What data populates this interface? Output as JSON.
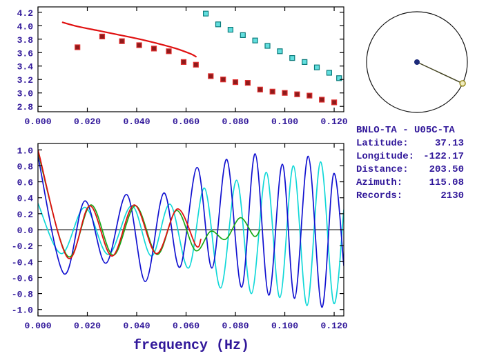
{
  "info_panel": {
    "title": "BNLO-TA - U05C-TA",
    "lines": [
      {
        "label": "Latitude:",
        "value": "37.13"
      },
      {
        "label": "Longitude:",
        "value": "-122.17"
      },
      {
        "label": "Distance:",
        "value": "203.50"
      },
      {
        "label": "Azimuth:",
        "value": "115.08"
      },
      {
        "label": "Records:",
        "value": "2130"
      }
    ]
  },
  "chart_data": [
    {
      "id": "dispersion-panel",
      "type": "scatter",
      "target": "chart-top",
      "title": "",
      "xlabel": "",
      "ylabel": "",
      "xlim": [
        0,
        0.1239
      ],
      "ylim": [
        2.72,
        4.28
      ],
      "grid": false,
      "xtick_values": [
        0,
        0.02,
        0.04,
        0.06,
        0.08,
        0.1,
        0.12
      ],
      "xtick_labels": [
        "0.000",
        "0.020",
        "0.040",
        "0.060",
        "0.080",
        "0.100",
        "0.120"
      ],
      "ytick_values": [
        2.8,
        3.0,
        3.2,
        3.4,
        3.6,
        3.8,
        4.0,
        4.2
      ],
      "ytick_labels": [
        "2.8",
        "3.0",
        "3.2",
        "3.4",
        "3.6",
        "3.8",
        "4.0",
        "4.2"
      ],
      "series": [
        {
          "name": "smoothed-dispersion-line",
          "kind": "line",
          "smooth": true,
          "color": "#e01010",
          "width": 2.2,
          "points": [
            [
              0.01,
              4.05
            ],
            [
              0.016,
              3.99
            ],
            [
              0.024,
              3.93
            ],
            [
              0.032,
              3.87
            ],
            [
              0.04,
              3.81
            ],
            [
              0.048,
              3.74
            ],
            [
              0.056,
              3.66
            ],
            [
              0.062,
              3.58
            ],
            [
              0.064,
              3.54
            ]
          ]
        },
        {
          "name": "dispersion-points-red",
          "kind": "squares",
          "size": 7,
          "fill": "#8f1a1a",
          "color": "#e03030",
          "points": [
            [
              0.016,
              3.68
            ],
            [
              0.026,
              3.84
            ],
            [
              0.034,
              3.77
            ],
            [
              0.041,
              3.71
            ],
            [
              0.047,
              3.66
            ],
            [
              0.053,
              3.62
            ],
            [
              0.059,
              3.46
            ],
            [
              0.064,
              3.42
            ],
            [
              0.07,
              3.25
            ],
            [
              0.075,
              3.2
            ],
            [
              0.08,
              3.16
            ],
            [
              0.085,
              3.15
            ],
            [
              0.09,
              3.05
            ],
            [
              0.095,
              3.02
            ],
            [
              0.1,
              3.0
            ],
            [
              0.105,
              2.98
            ],
            [
              0.11,
              2.96
            ],
            [
              0.115,
              2.9
            ],
            [
              0.12,
              2.86
            ]
          ]
        },
        {
          "name": "dispersion-points-cyan",
          "kind": "squares",
          "size": 7,
          "fill": "#62dede",
          "color": "#0a7a7a",
          "points": [
            [
              0.068,
              4.18
            ],
            [
              0.073,
              4.02
            ],
            [
              0.078,
              3.94
            ],
            [
              0.083,
              3.86
            ],
            [
              0.088,
              3.78
            ],
            [
              0.093,
              3.7
            ],
            [
              0.098,
              3.62
            ],
            [
              0.103,
              3.52
            ],
            [
              0.108,
              3.46
            ],
            [
              0.113,
              3.38
            ],
            [
              0.118,
              3.3
            ],
            [
              0.122,
              3.22
            ]
          ]
        }
      ]
    },
    {
      "id": "waveform-panel",
      "type": "line",
      "target": "chart-bottom",
      "xlabel": "frequency (Hz)",
      "ylabel": "",
      "xlim": [
        0,
        0.1239
      ],
      "ylim": [
        -1.08,
        1.08
      ],
      "zero_line": true,
      "grid": false,
      "xtick_values": [
        0,
        0.02,
        0.04,
        0.06,
        0.08,
        0.1,
        0.12
      ],
      "xtick_labels": [
        "0.000",
        "0.020",
        "0.040",
        "0.060",
        "0.080",
        "0.100",
        "0.120"
      ],
      "ytick_values": [
        1.0,
        0.8,
        0.6,
        0.4,
        0.2,
        0.0,
        -0.2,
        -0.4,
        -0.6,
        -0.8,
        -1.0
      ],
      "ytick_labels": [
        "1.0",
        "0.8",
        "0.6",
        "0.4",
        "0.2",
        "0.0",
        "-0.2",
        "-0.4",
        "-0.6",
        "-0.8",
        "-1.0"
      ],
      "series": [
        {
          "name": "waveform-cyan",
          "kind": "line",
          "smooth": true,
          "color": "#10d8d8",
          "width": 1.7,
          "points": [
            [
              0.0,
              0.33
            ],
            [
              0.0095,
              -0.3
            ],
            [
              0.019,
              0.28
            ],
            [
              0.0285,
              -0.31
            ],
            [
              0.038,
              0.3
            ],
            [
              0.046,
              -0.33
            ],
            [
              0.0535,
              0.32
            ],
            [
              0.061,
              -0.48
            ],
            [
              0.0675,
              0.52
            ],
            [
              0.074,
              -0.73
            ],
            [
              0.0805,
              0.62
            ],
            [
              0.0865,
              -0.8
            ],
            [
              0.0925,
              0.72
            ],
            [
              0.098,
              -0.85
            ],
            [
              0.1035,
              0.8
            ],
            [
              0.109,
              -0.95
            ],
            [
              0.1145,
              0.85
            ],
            [
              0.1198,
              -0.92
            ],
            [
              0.1239,
              0.25
            ]
          ]
        },
        {
          "name": "waveform-blue",
          "kind": "line",
          "smooth": true,
          "color": "#1010d0",
          "width": 1.7,
          "points": [
            [
              0.0,
              0.92
            ],
            [
              0.0105,
              -0.55
            ],
            [
              0.019,
              0.36
            ],
            [
              0.0275,
              -0.42
            ],
            [
              0.036,
              0.44
            ],
            [
              0.0435,
              -0.65
            ],
            [
              0.051,
              0.46
            ],
            [
              0.0575,
              -0.47
            ],
            [
              0.0645,
              0.78
            ],
            [
              0.0705,
              -0.48
            ],
            [
              0.0765,
              0.88
            ],
            [
              0.0825,
              -0.72
            ],
            [
              0.088,
              0.95
            ],
            [
              0.0935,
              -0.82
            ],
            [
              0.099,
              0.82
            ],
            [
              0.104,
              -0.86
            ],
            [
              0.1095,
              0.92
            ],
            [
              0.115,
              -0.97
            ],
            [
              0.1198,
              0.7
            ],
            [
              0.1239,
              -0.45
            ]
          ]
        },
        {
          "name": "waveform-green",
          "kind": "line",
          "smooth": true,
          "color": "#18a818",
          "width": 1.7,
          "points": [
            [
              0.0,
              0.97
            ],
            [
              0.012,
              -0.33
            ],
            [
              0.0215,
              0.31
            ],
            [
              0.0305,
              -0.32
            ],
            [
              0.0395,
              0.3
            ],
            [
              0.0483,
              -0.31
            ],
            [
              0.0562,
              0.24
            ],
            [
              0.0638,
              -0.26
            ],
            [
              0.07,
              -0.02
            ],
            [
              0.076,
              -0.12
            ],
            [
              0.082,
              0.15
            ],
            [
              0.0875,
              -0.08
            ],
            [
              0.09,
              0.0
            ]
          ]
        },
        {
          "name": "waveform-red",
          "kind": "line",
          "smooth": true,
          "color": "#e01010",
          "width": 1.8,
          "points": [
            [
              0.0,
              1.0
            ],
            [
              0.012,
              -0.35
            ],
            [
              0.021,
              0.3
            ],
            [
              0.03,
              -0.33
            ],
            [
              0.039,
              0.31
            ],
            [
              0.048,
              -0.3
            ],
            [
              0.0565,
              0.26
            ],
            [
              0.064,
              -0.2
            ],
            [
              0.066,
              -0.12
            ]
          ]
        }
      ]
    },
    {
      "id": "azimuth-dial",
      "type": "dial",
      "target": "chart-dial",
      "azimuth_deg": 115.08,
      "circle_color": "#111111",
      "line_color": "#444422",
      "center_dot_color": "#1c2a7a",
      "marker_fill": "#f0ecc0",
      "marker_stroke": "#8a7a00"
    }
  ]
}
